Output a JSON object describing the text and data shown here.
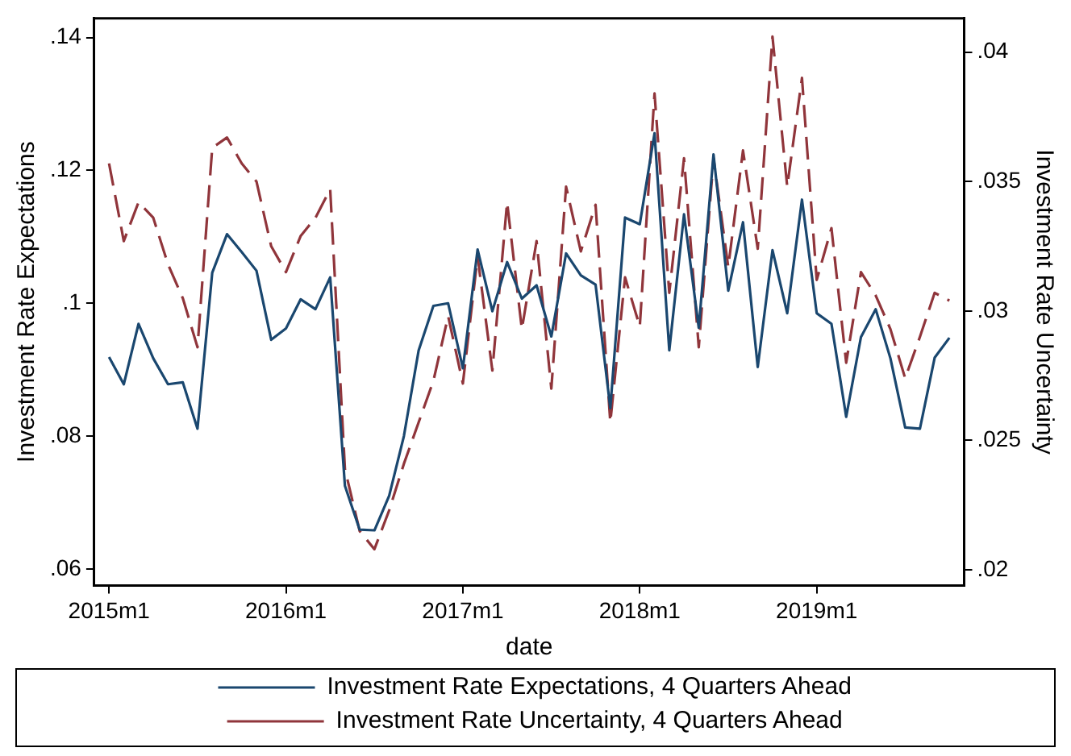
{
  "chart_data": {
    "type": "line",
    "xlabel": "date",
    "ylabel": "Investment Rate Expectations",
    "y2label": "Investment Rate Uncertainty",
    "x": [
      "2015-01",
      "2015-02",
      "2015-03",
      "2015-04",
      "2015-05",
      "2015-06",
      "2015-07",
      "2015-08",
      "2015-09",
      "2015-10",
      "2015-11",
      "2015-12",
      "2016-01",
      "2016-02",
      "2016-03",
      "2016-04",
      "2016-05",
      "2016-06",
      "2016-07",
      "2016-08",
      "2016-09",
      "2016-10",
      "2016-11",
      "2016-12",
      "2017-01",
      "2017-02",
      "2017-03",
      "2017-04",
      "2017-05",
      "2017-06",
      "2017-07",
      "2017-08",
      "2017-09",
      "2017-10",
      "2017-11",
      "2017-12",
      "2018-01",
      "2018-02",
      "2018-03",
      "2018-04",
      "2018-05",
      "2018-06",
      "2018-07",
      "2018-08",
      "2018-09",
      "2018-10",
      "2018-11",
      "2018-12",
      "2019-01",
      "2019-02",
      "2019-03",
      "2019-04",
      "2019-05",
      "2019-06",
      "2019-07",
      "2019-08",
      "2019-09",
      "2019-10"
    ],
    "series": [
      {
        "name": "Investment Rate Expectations, 4 Quarters Ahead",
        "color": "#1a476f",
        "line_style": "solid",
        "values": [
          0.0919,
          0.0878,
          0.0969,
          0.0917,
          0.0878,
          0.0881,
          0.0811,
          0.1046,
          0.1104,
          0.1077,
          0.1049,
          0.0945,
          0.0962,
          0.1006,
          0.0991,
          0.1039,
          0.0725,
          0.0659,
          0.0658,
          0.071,
          0.08,
          0.0929,
          0.0996,
          0.1,
          0.0902,
          0.1081,
          0.0988,
          0.1062,
          0.1007,
          0.1027,
          0.095,
          0.1075,
          0.1042,
          0.1028,
          0.0842,
          0.1129,
          0.1119,
          0.1256,
          0.0929,
          0.1134,
          0.0963,
          0.1224,
          0.1019,
          0.1122,
          0.0904,
          0.108,
          0.0985,
          0.1156,
          0.0985,
          0.0969,
          0.0829,
          0.0949,
          0.0991,
          0.0917,
          0.0813,
          0.0811,
          0.0918,
          0.0948
        ]
      },
      {
        "name": "Investment Rate Uncertainty, 4 Quarters Ahead",
        "color": "#90353b",
        "line_style": "dashed",
        "axis": "y2",
        "values": [
          0.0357,
          0.0327,
          0.0342,
          0.0336,
          0.0318,
          0.0305,
          0.0286,
          0.0363,
          0.0367,
          0.0357,
          0.035,
          0.0325,
          0.0315,
          0.0329,
          0.0336,
          0.0347,
          0.0239,
          0.0215,
          0.0208,
          0.0223,
          0.0241,
          0.0257,
          0.0273,
          0.0298,
          0.0272,
          0.0321,
          0.0277,
          0.0342,
          0.0293,
          0.0327,
          0.027,
          0.0348,
          0.0323,
          0.0341,
          0.0257,
          0.0313,
          0.0294,
          0.0384,
          0.0307,
          0.0359,
          0.0286,
          0.0359,
          0.0317,
          0.0362,
          0.0324,
          0.0406,
          0.0348,
          0.039,
          0.0312,
          0.0332,
          0.028,
          0.0315,
          0.0306,
          0.0293,
          0.0274,
          0.029,
          0.0307,
          0.0304
        ]
      }
    ],
    "xlim": [
      "2014-12",
      "2019-11"
    ],
    "xticks": [
      {
        "value": "2015-01",
        "label": "2015m1"
      },
      {
        "value": "2016-01",
        "label": "2016m1"
      },
      {
        "value": "2017-01",
        "label": "2017m1"
      },
      {
        "value": "2018-01",
        "label": "2018m1"
      },
      {
        "value": "2019-01",
        "label": "2019m1"
      }
    ],
    "ylim": [
      0.0575,
      0.1429
    ],
    "yticks": [
      {
        "value": 0.06,
        "label": ".06"
      },
      {
        "value": 0.08,
        "label": ".08"
      },
      {
        "value": 0.1,
        "label": ".1"
      },
      {
        "value": 0.12,
        "label": ".12"
      },
      {
        "value": 0.14,
        "label": ".14"
      }
    ],
    "y2lim": [
      0.0194,
      0.0413
    ],
    "y2ticks": [
      {
        "value": 0.02,
        "label": ".02"
      },
      {
        "value": 0.025,
        "label": ".025"
      },
      {
        "value": 0.03,
        "label": ".03"
      },
      {
        "value": 0.035,
        "label": ".035"
      },
      {
        "value": 0.04,
        "label": ".04"
      }
    ],
    "grid": false,
    "legend": "bottom",
    "marker": "none"
  }
}
